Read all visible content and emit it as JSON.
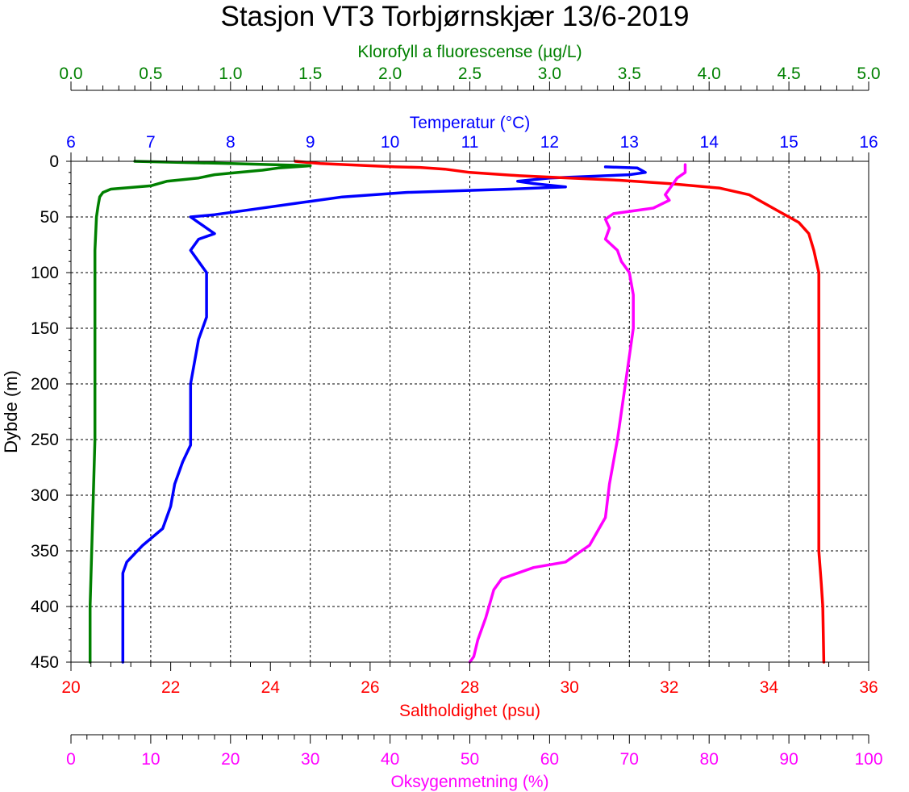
{
  "chart_data": {
    "type": "line",
    "title": "Stasjon VT3 Torbjørnskjær 13/6-2019",
    "y_axis": {
      "label": "Dybde (m)",
      "range": [
        0,
        450
      ],
      "inverted": true,
      "ticks": [
        0,
        50,
        100,
        150,
        200,
        250,
        300,
        350,
        400,
        450
      ]
    },
    "grid": true,
    "axes": [
      {
        "key": "chl",
        "label": "Klorofyll a fluorescense (µg/L)",
        "position": "top-outer",
        "color": "#008000",
        "range": [
          0,
          5
        ],
        "ticks": [
          "0.0",
          "0.5",
          "1.0",
          "1.5",
          "2.0",
          "2.5",
          "3.0",
          "3.5",
          "4.0",
          "4.5",
          "5.0"
        ]
      },
      {
        "key": "temp",
        "label": "Temperatur (°C)",
        "position": "top",
        "color": "#0000ff",
        "range": [
          6,
          16
        ],
        "ticks": [
          "6",
          "7",
          "8",
          "9",
          "10",
          "11",
          "12",
          "13",
          "14",
          "15",
          "16"
        ]
      },
      {
        "key": "sal",
        "label": "Saltholdighet (psu)",
        "position": "bottom",
        "color": "#ff0000",
        "range": [
          20,
          36
        ],
        "ticks": [
          "20",
          "22",
          "24",
          "26",
          "28",
          "30",
          "32",
          "34",
          "36"
        ]
      },
      {
        "key": "oxy",
        "label": "Oksygenmetning (%)",
        "position": "bottom-outer",
        "color": "#ff00ff",
        "range": [
          0,
          100
        ],
        "ticks": [
          "0",
          "10",
          "20",
          "30",
          "40",
          "50",
          "60",
          "70",
          "80",
          "90",
          "100"
        ]
      }
    ],
    "series": [
      {
        "axis": "chl",
        "color": "#008000",
        "points": [
          [
            0.4,
            0
          ],
          [
            1.0,
            2
          ],
          [
            1.5,
            4
          ],
          [
            1.3,
            6
          ],
          [
            1.2,
            8
          ],
          [
            1.05,
            10
          ],
          [
            0.9,
            12
          ],
          [
            0.8,
            15
          ],
          [
            0.6,
            18
          ],
          [
            0.5,
            22
          ],
          [
            0.25,
            25
          ],
          [
            0.2,
            28
          ],
          [
            0.18,
            32
          ],
          [
            0.17,
            40
          ],
          [
            0.16,
            50
          ],
          [
            0.15,
            80
          ],
          [
            0.15,
            150
          ],
          [
            0.15,
            250
          ],
          [
            0.14,
            300
          ],
          [
            0.13,
            350
          ],
          [
            0.12,
            400
          ],
          [
            0.12,
            450
          ]
        ]
      },
      {
        "axis": "temp",
        "color": "#0000ff",
        "points": [
          [
            12.7,
            5
          ],
          [
            13.1,
            6
          ],
          [
            13.2,
            10
          ],
          [
            13.0,
            12
          ],
          [
            12.0,
            15
          ],
          [
            11.6,
            18
          ],
          [
            11.8,
            20
          ],
          [
            12.2,
            23
          ],
          [
            11.5,
            25
          ],
          [
            10.2,
            28
          ],
          [
            9.4,
            32
          ],
          [
            8.8,
            38
          ],
          [
            8.2,
            44
          ],
          [
            7.8,
            48
          ],
          [
            7.5,
            50
          ],
          [
            7.6,
            55
          ],
          [
            7.8,
            65
          ],
          [
            7.6,
            70
          ],
          [
            7.5,
            80
          ],
          [
            7.6,
            90
          ],
          [
            7.7,
            100
          ],
          [
            7.7,
            120
          ],
          [
            7.7,
            140
          ],
          [
            7.6,
            160
          ],
          [
            7.5,
            200
          ],
          [
            7.5,
            240
          ],
          [
            7.5,
            255
          ],
          [
            7.4,
            270
          ],
          [
            7.3,
            290
          ],
          [
            7.25,
            310
          ],
          [
            7.15,
            330
          ],
          [
            6.9,
            345
          ],
          [
            6.7,
            360
          ],
          [
            6.65,
            370
          ],
          [
            6.65,
            400
          ],
          [
            6.65,
            450
          ]
        ]
      },
      {
        "axis": "sal",
        "color": "#ff0000",
        "points": [
          [
            24.5,
            0
          ],
          [
            25.0,
            2
          ],
          [
            26.5,
            5
          ],
          [
            27.0,
            5.5
          ],
          [
            27.5,
            7
          ],
          [
            28.0,
            10
          ],
          [
            29.0,
            13
          ],
          [
            30.0,
            15
          ],
          [
            31.0,
            17
          ],
          [
            32.0,
            20
          ],
          [
            33.0,
            24
          ],
          [
            33.6,
            30
          ],
          [
            34.2,
            45
          ],
          [
            34.6,
            55
          ],
          [
            34.8,
            65
          ],
          [
            34.9,
            80
          ],
          [
            35.0,
            100
          ],
          [
            35.0,
            150
          ],
          [
            35.0,
            250
          ],
          [
            35.0,
            300
          ],
          [
            35.0,
            350
          ],
          [
            35.05,
            380
          ],
          [
            35.08,
            400
          ],
          [
            35.1,
            450
          ]
        ]
      },
      {
        "axis": "oxy",
        "color": "#ff00ff",
        "points": [
          [
            77,
            3
          ],
          [
            77,
            10
          ],
          [
            76,
            15
          ],
          [
            75.5,
            20
          ],
          [
            75,
            25
          ],
          [
            74.5,
            30
          ],
          [
            75,
            35
          ],
          [
            73,
            42
          ],
          [
            68,
            47
          ],
          [
            67,
            52
          ],
          [
            67.5,
            60
          ],
          [
            67,
            70
          ],
          [
            68.5,
            80
          ],
          [
            69,
            90
          ],
          [
            70,
            100
          ],
          [
            70.5,
            120
          ],
          [
            70.5,
            150
          ],
          [
            69.5,
            200
          ],
          [
            68.5,
            250
          ],
          [
            67.5,
            290
          ],
          [
            67,
            320
          ],
          [
            65,
            345
          ],
          [
            62,
            360
          ],
          [
            58,
            365
          ],
          [
            54,
            375
          ],
          [
            53,
            385
          ],
          [
            52,
            410
          ],
          [
            51,
            430
          ],
          [
            50.5,
            445
          ],
          [
            50,
            450
          ]
        ]
      }
    ]
  }
}
